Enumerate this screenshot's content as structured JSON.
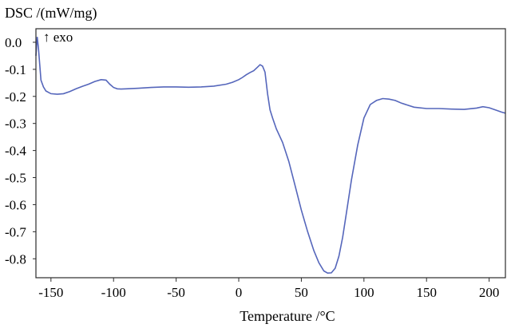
{
  "chart_data": {
    "type": "line",
    "ylabel": "DSC /(mW/mg)",
    "xlabel": "Temperature /°C",
    "annotation": "↑ exo",
    "xlim": [
      -162,
      213
    ],
    "ylim": [
      -0.87,
      0.05
    ],
    "x_ticks": [
      -150,
      -100,
      -50,
      0,
      50,
      100,
      150,
      200
    ],
    "x_tick_labels": [
      "-150",
      "-100",
      "-50",
      "0",
      "50",
      "100",
      "150",
      "200"
    ],
    "y_ticks": [
      0.0,
      -0.1,
      -0.2,
      -0.3,
      -0.4,
      -0.5,
      -0.6,
      -0.7,
      -0.8
    ],
    "y_tick_labels": [
      "0.0",
      "-0.1",
      "-0.2",
      "-0.3",
      "-0.4",
      "-0.5",
      "-0.6",
      "-0.7",
      "-0.8"
    ],
    "grid": false,
    "series": [
      {
        "color": "#5566bb",
        "x": [
          -162,
          -161,
          -160,
          -159,
          -158,
          -156,
          -154,
          -150,
          -145,
          -140,
          -135,
          -130,
          -125,
          -120,
          -115,
          -110,
          -106,
          -103,
          -100,
          -97,
          -94,
          -90,
          -80,
          -70,
          -60,
          -50,
          -40,
          -30,
          -20,
          -10,
          -5,
          0,
          3,
          6,
          9,
          12,
          15,
          17,
          19,
          21,
          23,
          25,
          27,
          30,
          35,
          40,
          45,
          50,
          55,
          60,
          64,
          68,
          71,
          74,
          77,
          80,
          83,
          86,
          90,
          95,
          100,
          105,
          110,
          115,
          120,
          125,
          130,
          140,
          150,
          160,
          170,
          180,
          190,
          195,
          200,
          205,
          210,
          213
        ],
        "y": [
          -0.05,
          0.02,
          -0.02,
          -0.08,
          -0.14,
          -0.165,
          -0.18,
          -0.19,
          -0.192,
          -0.19,
          -0.182,
          -0.172,
          -0.163,
          -0.155,
          -0.145,
          -0.138,
          -0.14,
          -0.155,
          -0.167,
          -0.172,
          -0.173,
          -0.172,
          -0.17,
          -0.167,
          -0.165,
          -0.165,
          -0.166,
          -0.165,
          -0.162,
          -0.155,
          -0.148,
          -0.138,
          -0.13,
          -0.12,
          -0.112,
          -0.105,
          -0.092,
          -0.083,
          -0.088,
          -0.11,
          -0.19,
          -0.25,
          -0.28,
          -0.32,
          -0.37,
          -0.44,
          -0.53,
          -0.62,
          -0.7,
          -0.77,
          -0.815,
          -0.845,
          -0.853,
          -0.852,
          -0.835,
          -0.79,
          -0.72,
          -0.63,
          -0.51,
          -0.38,
          -0.28,
          -0.23,
          -0.215,
          -0.208,
          -0.21,
          -0.215,
          -0.225,
          -0.24,
          -0.245,
          -0.245,
          -0.247,
          -0.248,
          -0.243,
          -0.238,
          -0.242,
          -0.25,
          -0.258,
          -0.262
        ]
      }
    ]
  }
}
